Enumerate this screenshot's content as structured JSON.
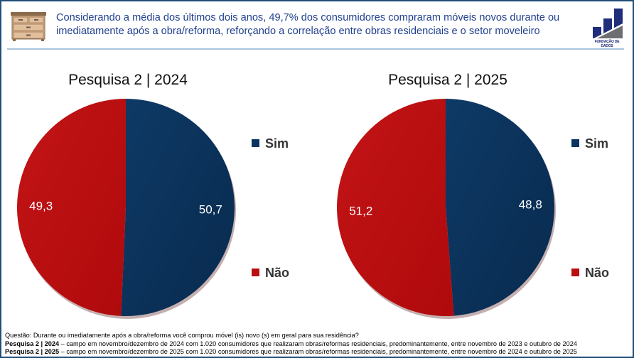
{
  "header": {
    "headline_line1": "Considerando a média dos últimos dois anos, 49,7% dos consumidores compraram móveis novos durante ou",
    "headline_line2": "imediatamente após a obra/reforma, reforçando a correlação entre obras residenciais e o setor moveleiro",
    "illustration_icon": "dresser-icon",
    "logo_text": "FUNDAÇÃO DE DADOS"
  },
  "colors": {
    "sim": "#0b3560",
    "nao": "#bb0e10",
    "frame": "#1f4e79",
    "headline": "#1f3f8f",
    "logo_blue": "#1f2d7a",
    "logo_gray": "#6d6e71"
  },
  "chart_data": [
    {
      "type": "pie",
      "title": "Pesquisa 2 | 2024",
      "categories": [
        "Sim",
        "Não"
      ],
      "values": [
        50.7,
        49.3
      ],
      "labels": [
        "50,7",
        "49,3"
      ],
      "legend": "right"
    },
    {
      "type": "pie",
      "title": "Pesquisa 2 | 2025",
      "categories": [
        "Sim",
        "Não"
      ],
      "values": [
        48.8,
        51.2
      ],
      "labels": [
        "48,8",
        "51,2"
      ],
      "legend": "right"
    }
  ],
  "footer": {
    "question": "Questão: Durante ou imediatamente após a obra/reforma você comprou móvel (is) novo (s) em geral para sua residência?",
    "note1_bold": "Pesquisa 2 | 2024",
    "note1_text": " – campo em novembro/dezembro de 2024 com 1.020 consumidores que realizaram obras/reformas residenciais, predominantemente, entre novembro de 2023 e outubro de 2024",
    "note2_bold": "Pesquisa 2 | 2025",
    "note2_text": " – campo em novembro/dezembro de 2025 com 1.020 consumidores que realizaram obras/reformas residenciais, predominantemente, entre novembro de 2024 e outubro de 2025"
  }
}
